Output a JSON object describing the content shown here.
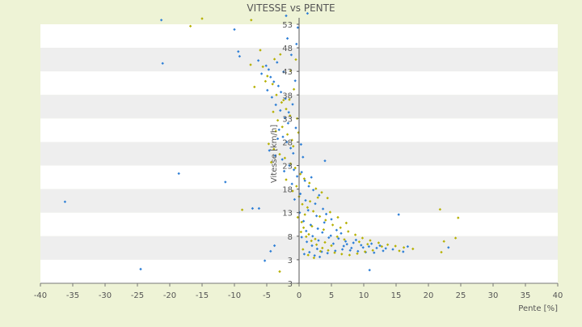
{
  "chart_data": {
    "type": "scatter",
    "title": "VITESSE vs PENTE",
    "xlabel": "Pente [%]",
    "ylabel": "Vitesse [km/h]",
    "xlim": [
      -40,
      40
    ],
    "ylim": [
      -2,
      53
    ],
    "x_ticks": [
      "-40",
      "-35",
      "-30",
      "-25",
      "-20",
      "-15",
      "-10",
      "-5",
      "0",
      "5",
      "10",
      "15",
      "20",
      "25",
      "30",
      "35",
      "40"
    ],
    "y_ticks": [
      "53",
      "48",
      "43",
      "38",
      "33",
      "28",
      "23",
      "18",
      "13",
      "8",
      "3",
      "3"
    ],
    "grid": true,
    "legend": "none",
    "colors": {
      "background": "#eef3d6",
      "band_light": "#ffffff",
      "band_dark": "#eeeeee",
      "series_a": "#2e7fd6",
      "series_b": "#b5b000",
      "text": "#555555",
      "axis": "#777777"
    },
    "series": [
      {
        "color": "#2e7fd6",
        "points": [
          [
            -36.2,
            15.3
          ],
          [
            -24.5,
            1.0
          ],
          [
            -21.3,
            53.9
          ],
          [
            -21.1,
            44.7
          ],
          [
            -18.6,
            21.3
          ],
          [
            -11.4,
            19.5
          ],
          [
            -10.0,
            51.9
          ],
          [
            -9.4,
            47.2
          ],
          [
            -9.2,
            46.2
          ],
          [
            -7.2,
            13.9
          ],
          [
            -6.2,
            13.9
          ],
          [
            -5.3,
            2.8
          ],
          [
            -4.4,
            4.8
          ],
          [
            -3.8,
            6.0
          ],
          [
            -2.0,
            54.8
          ],
          [
            1.3,
            55.3
          ],
          [
            4.0,
            24.0
          ],
          [
            10.9,
            0.8
          ],
          [
            15.4,
            12.6
          ],
          [
            16.8,
            5.8
          ],
          [
            23.1,
            5.6
          ],
          [
            -6.3,
            45.3
          ],
          [
            -5.1,
            44.2
          ],
          [
            -4.7,
            43.4
          ],
          [
            -4.4,
            41.8
          ],
          [
            -3.9,
            40.8
          ],
          [
            -3.2,
            39.9
          ],
          [
            -2.8,
            38.6
          ],
          [
            -2.1,
            37.2
          ],
          [
            -5.8,
            42.5
          ],
          [
            -4.2,
            37.5
          ],
          [
            -3.6,
            35.9
          ],
          [
            -2.9,
            34.7
          ],
          [
            -2.2,
            33.1
          ],
          [
            -1.7,
            32.0
          ],
          [
            -3.1,
            30.6
          ],
          [
            -2.5,
            29.1
          ],
          [
            -1.9,
            28.0
          ],
          [
            -1.3,
            26.7
          ],
          [
            -4.6,
            26.2
          ],
          [
            -3.7,
            25.1
          ],
          [
            -2.6,
            24.3
          ],
          [
            -1.5,
            23.0
          ],
          [
            -0.8,
            22.1
          ],
          [
            -0.3,
            20.7
          ],
          [
            0.4,
            21.6
          ],
          [
            0.9,
            19.8
          ],
          [
            1.5,
            18.6
          ],
          [
            2.2,
            17.8
          ],
          [
            3.1,
            16.7
          ],
          [
            1.0,
            15.6
          ],
          [
            2.5,
            14.9
          ],
          [
            3.7,
            13.8
          ],
          [
            4.2,
            12.7
          ],
          [
            5.0,
            11.6
          ],
          [
            0.7,
            11.2
          ],
          [
            1.8,
            10.4
          ],
          [
            2.9,
            9.6
          ],
          [
            3.6,
            8.8
          ],
          [
            4.9,
            8.1
          ],
          [
            6.1,
            7.5
          ],
          [
            7.2,
            6.9
          ],
          [
            8.4,
            6.6
          ],
          [
            9.6,
            6.1
          ],
          [
            10.8,
            5.8
          ],
          [
            12.0,
            5.5
          ],
          [
            13.4,
            5.4
          ],
          [
            14.5,
            5.2
          ],
          [
            0.4,
            7.8
          ],
          [
            1.2,
            6.8
          ],
          [
            2.0,
            6.0
          ],
          [
            2.8,
            5.3
          ],
          [
            3.5,
            4.7
          ],
          [
            4.4,
            4.4
          ],
          [
            5.6,
            4.9
          ],
          [
            6.7,
            5.2
          ],
          [
            7.9,
            5.0
          ],
          [
            9.1,
            4.8
          ],
          [
            10.3,
            4.6
          ],
          [
            11.6,
            4.5
          ],
          [
            0.8,
            4.2
          ],
          [
            1.6,
            4.6
          ],
          [
            2.4,
            3.9
          ],
          [
            3.2,
            3.6
          ],
          [
            -0.6,
            41.0
          ],
          [
            -1.0,
            36.0
          ],
          [
            -0.5,
            31.0
          ],
          [
            -1.2,
            46.5
          ],
          [
            -0.4,
            48.8
          ],
          [
            -1.8,
            50.0
          ],
          [
            -0.2,
            52.3
          ],
          [
            0.3,
            27.5
          ],
          [
            0.6,
            24.8
          ],
          [
            1.9,
            20.5
          ],
          [
            2.7,
            12.3
          ],
          [
            5.8,
            9.3
          ],
          [
            6.5,
            8.6
          ],
          [
            8.8,
            7.2
          ],
          [
            11.2,
            6.4
          ],
          [
            12.5,
            6.0
          ],
          [
            0.2,
            17.0
          ],
          [
            1.4,
            13.5
          ],
          [
            3.9,
            10.9
          ],
          [
            4.6,
            7.7
          ],
          [
            7.4,
            6.3
          ],
          [
            9.9,
            5.6
          ],
          [
            13.0,
            4.9
          ],
          [
            16.1,
            4.7
          ],
          [
            -2.4,
            42.9
          ],
          [
            -3.4,
            44.9
          ],
          [
            -4.9,
            39.0
          ],
          [
            -1.6,
            34.3
          ],
          [
            -3.3,
            28.7
          ],
          [
            -0.9,
            25.6
          ],
          [
            -2.3,
            21.8
          ],
          [
            -1.1,
            19.1
          ],
          [
            -0.7,
            15.8
          ],
          [
            0.1,
            13.0
          ],
          [
            1.1,
            9.1
          ],
          [
            2.1,
            8.0
          ],
          [
            3.0,
            7.1
          ],
          [
            5.3,
            6.4
          ],
          [
            6.9,
            5.9
          ],
          [
            8.1,
            5.5
          ]
        ]
      },
      {
        "color": "#b5b000",
        "points": [
          [
            -16.8,
            52.6
          ],
          [
            -15.0,
            54.2
          ],
          [
            -7.4,
            53.9
          ],
          [
            -8.8,
            13.6
          ],
          [
            -7.5,
            44.4
          ],
          [
            -6.9,
            39.7
          ],
          [
            -3.0,
            0.5
          ],
          [
            -0.1,
            30.0
          ],
          [
            21.8,
            13.7
          ],
          [
            22.0,
            4.6
          ],
          [
            22.4,
            6.9
          ],
          [
            24.2,
            7.6
          ],
          [
            24.6,
            11.9
          ],
          [
            -5.6,
            44.0
          ],
          [
            -4.9,
            42.0
          ],
          [
            -4.1,
            40.3
          ],
          [
            -3.5,
            38.0
          ],
          [
            -2.7,
            36.4
          ],
          [
            -2.0,
            35.0
          ],
          [
            -1.4,
            33.6
          ],
          [
            -4.0,
            34.4
          ],
          [
            -3.3,
            32.6
          ],
          [
            -2.6,
            31.2
          ],
          [
            -1.8,
            29.6
          ],
          [
            -1.1,
            28.4
          ],
          [
            -4.7,
            27.6
          ],
          [
            -3.9,
            26.5
          ],
          [
            -3.0,
            25.4
          ],
          [
            -2.2,
            24.6
          ],
          [
            -1.3,
            23.4
          ],
          [
            -0.6,
            22.5
          ],
          [
            0.2,
            21.2
          ],
          [
            0.8,
            20.2
          ],
          [
            1.6,
            19.3
          ],
          [
            2.6,
            18.1
          ],
          [
            3.5,
            17.3
          ],
          [
            4.4,
            16.1
          ],
          [
            0.5,
            14.8
          ],
          [
            1.3,
            14.1
          ],
          [
            2.2,
            13.3
          ],
          [
            3.2,
            12.2
          ],
          [
            4.1,
            11.4
          ],
          [
            5.2,
            10.4
          ],
          [
            6.4,
            9.8
          ],
          [
            7.6,
            9.0
          ],
          [
            8.7,
            8.3
          ],
          [
            9.8,
            7.6
          ],
          [
            11.0,
            7.1
          ],
          [
            12.3,
            6.6
          ],
          [
            13.7,
            6.2
          ],
          [
            14.9,
            5.9
          ],
          [
            16.2,
            5.6
          ],
          [
            17.6,
            5.3
          ],
          [
            0.3,
            8.9
          ],
          [
            1.1,
            7.9
          ],
          [
            1.9,
            7.0
          ],
          [
            2.7,
            6.2
          ],
          [
            3.6,
            5.5
          ],
          [
            4.5,
            5.0
          ],
          [
            5.5,
            4.5
          ],
          [
            6.6,
            4.2
          ],
          [
            7.8,
            4.0
          ],
          [
            9.0,
            4.3
          ],
          [
            10.2,
            4.7
          ],
          [
            11.4,
            5.0
          ],
          [
            0.6,
            5.2
          ],
          [
            1.4,
            4.0
          ],
          [
            2.3,
            3.4
          ],
          [
            3.3,
            4.8
          ],
          [
            -0.5,
            45.5
          ],
          [
            -1.3,
            43.1
          ],
          [
            -0.8,
            39.2
          ],
          [
            -1.5,
            37.0
          ],
          [
            -0.3,
            33.0
          ],
          [
            -0.9,
            27.1
          ],
          [
            -0.4,
            18.6
          ],
          [
            0.0,
            16.4
          ],
          [
            0.9,
            12.6
          ],
          [
            2.0,
            10.1
          ],
          [
            3.8,
            9.4
          ],
          [
            5.9,
            7.9
          ],
          [
            7.0,
            7.3
          ],
          [
            9.3,
            6.8
          ],
          [
            10.6,
            6.3
          ],
          [
            12.8,
            5.8
          ],
          [
            15.5,
            4.9
          ],
          [
            0.4,
            11.0
          ],
          [
            1.7,
            15.4
          ],
          [
            2.9,
            16.2
          ],
          [
            4.8,
            13.1
          ],
          [
            6.0,
            12.0
          ],
          [
            7.3,
            10.8
          ],
          [
            -6.0,
            47.5
          ],
          [
            -2.9,
            46.6
          ],
          [
            -3.8,
            45.6
          ],
          [
            -5.2,
            40.9
          ],
          [
            -2.4,
            36.9
          ],
          [
            -3.6,
            30.3
          ],
          [
            -4.3,
            23.7
          ],
          [
            -2.0,
            20.0
          ],
          [
            -1.0,
            17.6
          ],
          [
            -0.2,
            12.0
          ],
          [
            0.7,
            9.8
          ],
          [
            1.5,
            8.4
          ],
          [
            2.5,
            7.4
          ],
          [
            4.0,
            6.7
          ],
          [
            5.0,
            6.0
          ]
        ]
      }
    ]
  }
}
